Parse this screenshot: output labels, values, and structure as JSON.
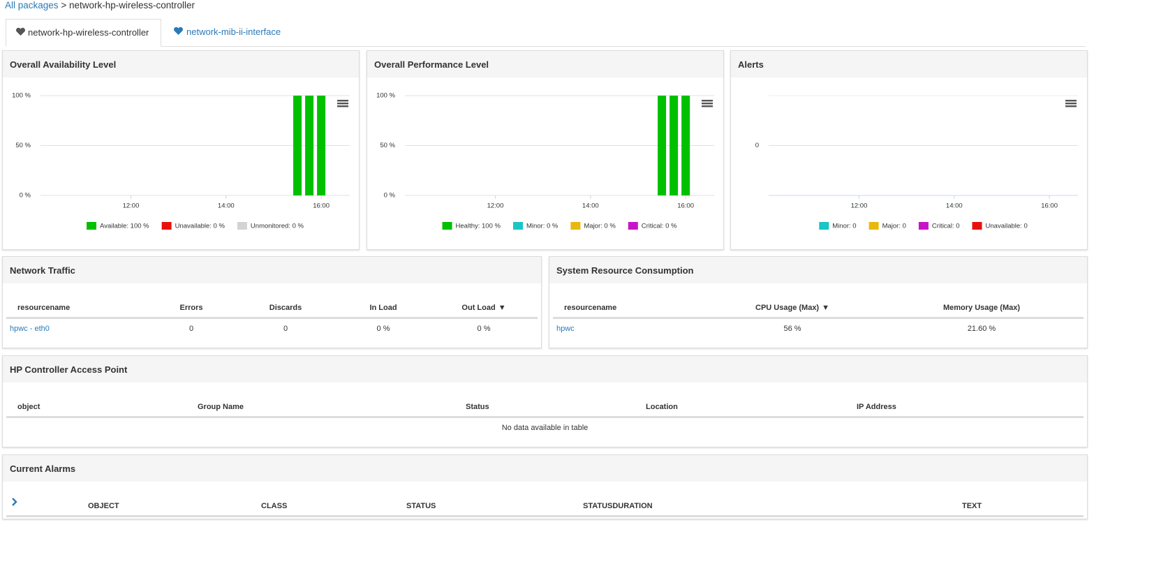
{
  "breadcrumb": {
    "link": "All packages",
    "separator": ">",
    "current": "network-hp-wireless-controller"
  },
  "tabs": [
    "network-hp-wireless-controller",
    "network-mib-ii-interface"
  ],
  "chart_data": [
    {
      "type": "bar",
      "title": "Overall Availability Level",
      "x": [
        15.5,
        15.75,
        16
      ],
      "series": [
        {
          "name": "Available: 100 %",
          "color": "#00c000",
          "values": [
            100,
            100,
            100
          ]
        },
        {
          "name": "Unavailable: 0 %",
          "color": "#e8120c",
          "values": [
            0,
            0,
            0
          ]
        },
        {
          "name": "Unmonitored: 0 %",
          "color": "#d3d3d3",
          "values": [
            0,
            0,
            0
          ]
        }
      ],
      "xlim": [
        10.1,
        16.6
      ],
      "xticks": [
        {
          "value": 12,
          "label": "12:00"
        },
        {
          "value": 14,
          "label": "14:00"
        },
        {
          "value": 16,
          "label": "16:00"
        }
      ],
      "ylim": [
        0,
        100
      ],
      "yticks": [
        {
          "value": 0,
          "label": "0 %"
        },
        {
          "value": 50,
          "label": "50 %"
        },
        {
          "value": 100,
          "label": "100 %"
        }
      ],
      "grid": true
    },
    {
      "type": "bar",
      "title": "Overall Performance Level",
      "x": [
        15.5,
        15.75,
        16
      ],
      "series": [
        {
          "name": "Healthy: 100 %",
          "color": "#00c000",
          "values": [
            100,
            100,
            100
          ]
        },
        {
          "name": "Minor: 0 %",
          "color": "#19c6c6",
          "values": [
            0,
            0,
            0
          ]
        },
        {
          "name": "Major: 0 %",
          "color": "#e8b90c",
          "values": [
            0,
            0,
            0
          ]
        },
        {
          "name": "Critical: 0 %",
          "color": "#c814c8",
          "values": [
            0,
            0,
            0
          ]
        }
      ],
      "xlim": [
        10.1,
        16.6
      ],
      "xticks": [
        {
          "value": 12,
          "label": "12:00"
        },
        {
          "value": 14,
          "label": "14:00"
        },
        {
          "value": 16,
          "label": "16:00"
        }
      ],
      "ylim": [
        0,
        100
      ],
      "yticks": [
        {
          "value": 0,
          "label": "0 %"
        },
        {
          "value": 50,
          "label": "50 %"
        },
        {
          "value": 100,
          "label": "100 %"
        }
      ],
      "grid": true
    },
    {
      "type": "bar",
      "title": "Alerts",
      "x": [],
      "series": [
        {
          "name": "Minor: 0",
          "color": "#19c6c6",
          "values": []
        },
        {
          "name": "Major: 0",
          "color": "#e8b90c",
          "values": []
        },
        {
          "name": "Critical: 0",
          "color": "#c814c8",
          "values": []
        },
        {
          "name": "Unavailable: 0",
          "color": "#e8120c",
          "values": []
        }
      ],
      "xlim": [
        10.1,
        16.6
      ],
      "xticks": [
        {
          "value": 12,
          "label": "12:00"
        },
        {
          "value": 14,
          "label": "14:00"
        },
        {
          "value": 16,
          "label": "16:00"
        }
      ],
      "ylim": [
        -1,
        1
      ],
      "yticks": [
        0
      ],
      "grid": true
    }
  ],
  "tables": [
    {
      "title": "Network Traffic",
      "columns": [
        "resourcename",
        "Errors",
        "Discards",
        "In Load",
        "Out Load"
      ],
      "rows": [
        [
          "hpwc - eth0",
          "0",
          "0",
          "0 %",
          "0 %"
        ]
      ]
    },
    {
      "title": "System Resource Consumption",
      "columns": [
        "resourcename",
        "CPU Usage (Max)",
        "Memory Usage (Max)"
      ],
      "rows": [
        [
          "hpwc",
          "56 %",
          "21.60 %"
        ]
      ]
    },
    {
      "title": "HP Controller Access Point",
      "columns": [
        "object",
        "Group Name",
        "Status",
        "Location",
        "IP Address"
      ],
      "rows": [],
      "empty": "No data available in table"
    },
    {
      "title": "Current Alarms",
      "columns": [
        "OBJECT",
        "CLASS",
        "STATUS",
        "STATUSDURATION",
        "TEXT"
      ],
      "rows": []
    }
  ]
}
